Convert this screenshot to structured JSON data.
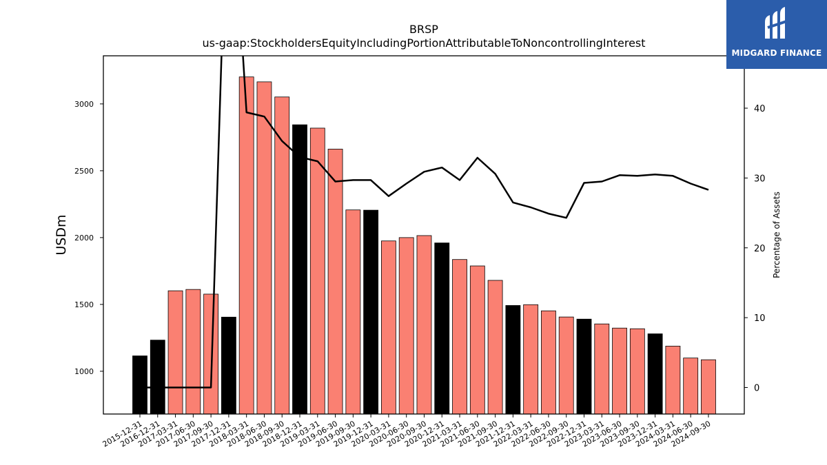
{
  "chart_data": {
    "type": "bar",
    "title": "BRSP",
    "subtitle": "us-gaap:StockholdersEquityIncludingPortionAttributableToNoncontrollingInterest",
    "ylabel": "USDm",
    "y2label": "Percentage of Assets",
    "ylim": [
      680,
      3360
    ],
    "y2lim": [
      -3.8,
      47.5
    ],
    "yticks": [
      1000,
      1500,
      2000,
      2500,
      3000
    ],
    "y2ticks": [
      0,
      10,
      20,
      30,
      40
    ],
    "categories": [
      "2015-12-31",
      "2016-12-31",
      "2017-03-31",
      "2017-06-30",
      "2017-09-30",
      "2017-12-31",
      "2018-03-31",
      "2018-06-30",
      "2018-09-30",
      "2018-12-31",
      "2019-03-31",
      "2019-06-30",
      "2019-09-30",
      "2019-12-31",
      "2020-03-31",
      "2020-06-30",
      "2020-09-30",
      "2020-12-31",
      "2021-03-31",
      "2021-06-30",
      "2021-09-30",
      "2021-12-31",
      "2022-03-31",
      "2022-06-30",
      "2022-09-30",
      "2022-12-31",
      "2023-03-31",
      "2023-06-30",
      "2023-09-30",
      "2023-12-31",
      "2024-03-31",
      "2024-06-30",
      "2024-09-30"
    ],
    "series": [
      {
        "kind": "bar",
        "values": [
          1115,
          1233,
          1602,
          1612,
          1577,
          1405,
          3202,
          3165,
          3052,
          2844,
          2819,
          2662,
          2207,
          2205,
          1975,
          2000,
          2015,
          1960,
          1836,
          1788,
          1680,
          1492,
          1498,
          1452,
          1406,
          1390,
          1354,
          1323,
          1318,
          1280,
          1188,
          1099,
          1086
        ],
        "colors": [
          "#000000",
          "#000000",
          "#fa8072",
          "#fa8072",
          "#fa8072",
          "#000000",
          "#fa8072",
          "#fa8072",
          "#fa8072",
          "#000000",
          "#fa8072",
          "#fa8072",
          "#fa8072",
          "#000000",
          "#fa8072",
          "#fa8072",
          "#fa8072",
          "#000000",
          "#fa8072",
          "#fa8072",
          "#fa8072",
          "#000000",
          "#fa8072",
          "#fa8072",
          "#fa8072",
          "#000000",
          "#fa8072",
          "#fa8072",
          "#fa8072",
          "#000000",
          "#fa8072",
          "#fa8072",
          "#fa8072"
        ]
      },
      {
        "kind": "line",
        "axis": "right",
        "color": "#000000",
        "values": [
          0,
          0,
          0,
          0,
          0,
          80,
          39.4,
          38.8,
          35.3,
          33.0,
          32.4,
          29.5,
          29.7,
          29.7,
          27.4,
          29.2,
          30.9,
          31.5,
          29.7,
          32.9,
          30.6,
          26.5,
          25.8,
          24.9,
          24.3,
          29.3,
          29.5,
          30.4,
          30.3,
          30.5,
          30.3,
          29.2,
          28.3
        ]
      }
    ],
    "grid": false
  },
  "logo": {
    "text": "MIDGARD FINANCE",
    "color": "#2b5dab"
  }
}
